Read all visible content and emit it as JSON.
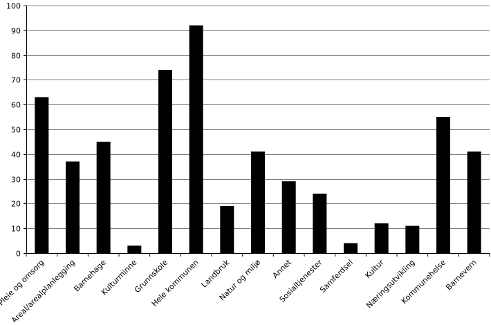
{
  "chart_data": {
    "type": "bar",
    "categories": [
      "Pleie og omsorg",
      "Areal/arealplanlegging",
      "Barnehage",
      "Kulturminne",
      "Grunnskole",
      "Hele kommunen",
      "Landbruk",
      "Natur og miljø",
      "Annet",
      "Sosialtjenester",
      "Samferdsel",
      "Kultur",
      "Næringsutvikling",
      "Kommunehelse",
      "Barnevern"
    ],
    "values": [
      63,
      37,
      45,
      3,
      74,
      92,
      19,
      41,
      29,
      24,
      4,
      12,
      11,
      55,
      41
    ],
    "title": "",
    "xlabel": "",
    "ylabel": "",
    "ylim": [
      0,
      100
    ],
    "yticks": [
      0,
      10,
      20,
      30,
      40,
      50,
      60,
      70,
      80,
      90,
      100
    ],
    "grid": true,
    "bar_color": "#000000",
    "grid_color": "#000000"
  }
}
